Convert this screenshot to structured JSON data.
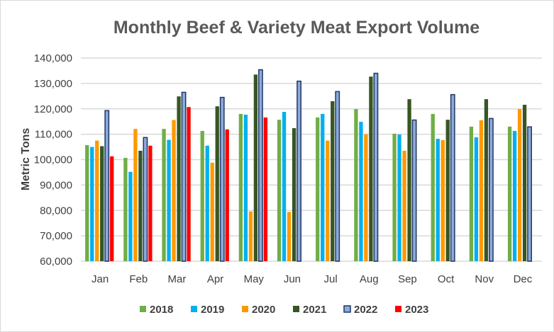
{
  "chart_data": {
    "type": "bar",
    "title": "Monthly Beef & Variety Meat Export Volume",
    "xlabel": "",
    "ylabel": "Metric Tons",
    "ylim": [
      60000,
      140000
    ],
    "yticks": [
      "60,000",
      "70,000",
      "80,000",
      "90,000",
      "100,000",
      "110,000",
      "120,000",
      "130,000",
      "140,000"
    ],
    "grid": true,
    "legend": "bottom",
    "categories": [
      "Jan",
      "Feb",
      "Mar",
      "Apr",
      "May",
      "Jun",
      "Jul",
      "Aug",
      "Sep",
      "Oct",
      "Nov",
      "Dec"
    ],
    "series": [
      {
        "name": "2018",
        "color": "#70ad47",
        "values": [
          105700,
          100700,
          112100,
          111300,
          118000,
          115700,
          116600,
          119900,
          110200,
          118000,
          113000,
          113000
        ]
      },
      {
        "name": "2019",
        "color": "#00b0f0",
        "values": [
          105000,
          95200,
          107800,
          105500,
          117700,
          118800,
          118000,
          114900,
          109900,
          108200,
          108800,
          111300
        ]
      },
      {
        "name": "2020",
        "color": "#ff9900",
        "values": [
          107500,
          112100,
          115600,
          98800,
          79600,
          79400,
          107500,
          110000,
          103500,
          107700,
          115500,
          119900
        ]
      },
      {
        "name": "2021",
        "color": "#375623",
        "values": [
          105300,
          103500,
          124900,
          121000,
          133500,
          112400,
          123000,
          132700,
          123800,
          115700,
          123800,
          121600
        ]
      },
      {
        "name": "2022",
        "color": "#8eaadb",
        "border": "#1f3864",
        "values": [
          119300,
          108700,
          126500,
          124500,
          135400,
          130900,
          126800,
          134000,
          115600,
          125600,
          116200,
          112900
        ]
      },
      {
        "name": "2023",
        "color": "#ff0000",
        "values": [
          101300,
          105500,
          120700,
          111900,
          116600,
          null,
          null,
          null,
          null,
          null,
          null,
          null
        ]
      }
    ]
  }
}
